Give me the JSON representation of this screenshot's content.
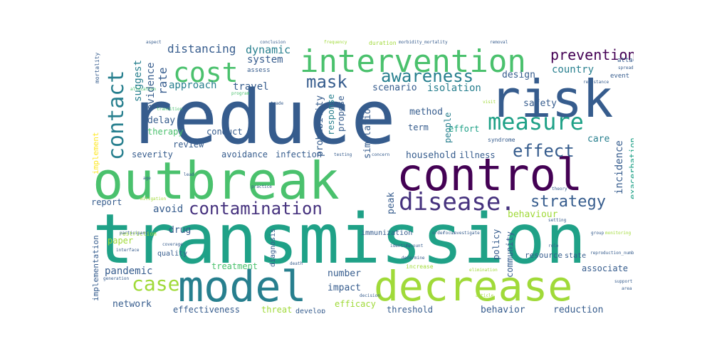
{
  "palette": {
    "dark_purple": "#440154",
    "indigo": "#46327e",
    "blue": "#365c8d",
    "steel": "#277f8e",
    "teal": "#1fa187",
    "green": "#4ac16d",
    "lime": "#a0da39",
    "yellow": "#fde725"
  },
  "words": {
    "reduce": "reduce",
    "transmission": "transmission",
    "outbreak": "outbreak",
    "control": "control",
    "risk": "risk",
    "model": "model",
    "decrease": "decrease",
    "intervention": "intervention",
    "cost": "cost",
    "measure": "measure",
    "contact": "contact",
    "disease": "disease.",
    "contamination": "contamination",
    "strategy": "strategy",
    "awareness": "awareness",
    "effect": "effect",
    "prevention": "prevention",
    "mask": "mask",
    "case": "case",
    "distancing": "distancing",
    "dynamic": "dynamic",
    "system": "system",
    "rate": "rate",
    "suggest": "suggest",
    "evidence": "evidence",
    "approach": "approach",
    "travel": "travel",
    "scenario": "scenario",
    "isolation": "isolation",
    "design": "design",
    "country": "country",
    "method": "method",
    "safety": "safety",
    "care": "care",
    "probability": "probability",
    "response": "response",
    "propose": "propose",
    "simulation": "simulation",
    "term": "term",
    "people": "people",
    "effort": "effort",
    "delay": "delay",
    "therapy": "therapy",
    "conduct": "conduct",
    "review": "review",
    "severity": "severity",
    "avoidance": "avoidance",
    "infection": "infection",
    "household": "household",
    "illness": "illness",
    "incidence": "incidence",
    "exacerbation": "exacerbation",
    "avoid": "avoid",
    "peak": "peak",
    "behaviour": "behaviour",
    "report": "report",
    "drug": "drug",
    "paper": "paper",
    "pandemic": "pandemic",
    "community": "community",
    "policy": "policy",
    "treatment": "treatment",
    "number": "number",
    "impact": "impact",
    "associate": "associate",
    "network": "network",
    "effectiveness": "effectiveness",
    "threat": "threat",
    "efficacy": "efficacy",
    "threshold": "threshold",
    "behavior": "behavior",
    "reduction": "reduction",
    "implementation": "implementation",
    "implement": "implement",
    "diagnosis": "diagnosis",
    "immunization": "immunization",
    "resource": "resource",
    "quality": "quality",
    "develop": "develop",
    "state": "state",
    "assess": "assess",
    "event": "event",
    "attack": "attack",
    "mortality": "mortality",
    "duration": "duration",
    "frequency": "frequency",
    "morbidity_mortality": "morbidity_mortality",
    "removal": "removal",
    "syndrome": "syndrome",
    "resistance": "resistance",
    "spreading": "spreading",
    "program": "program",
    "trade": "trade",
    "testing": "testing",
    "concern": "concern",
    "visit": "visit",
    "focus": "focus",
    "identify": "identify",
    "setting": "setting",
    "role": "role",
    "order": "order",
    "investigate": "investigate",
    "group": "group",
    "monitoring": "monitoring",
    "practice": "practice",
    "restriction": "restriction",
    "participant": "participant",
    "coverage": "coverage",
    "generation": "generation",
    "interface": "interface",
    "death": "death",
    "article": "article",
    "support": "support",
    "area": "area",
    "theory": "theory",
    "elimination": "elimination",
    "determine": "determine",
    "decision": "decision",
    "account": "account",
    "reproduction_number": "reproduction_number",
    "conclusion": "conclusion",
    "aspect": "aspect",
    "allocation": "allocation",
    "transition": "transition",
    "air": "air",
    "lead": "lead",
    "age": "age",
    "mitigation": "mitigation",
    "increase": "increase"
  }
}
